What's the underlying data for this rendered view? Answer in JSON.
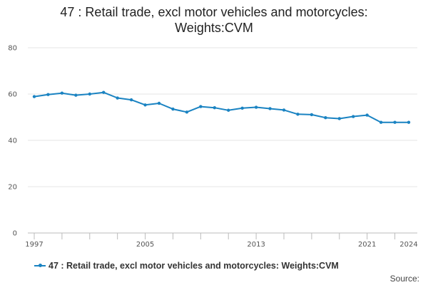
{
  "title_line1": "47 : Retail trade, excl motor vehicles and motorcycles:",
  "title_line2": "Weights:CVM",
  "source_label": "Source:",
  "colors": {
    "series": "#1a83c2",
    "grid": "#e6e6e6",
    "axis": "#bbbbbb"
  },
  "chart_data": {
    "type": "line",
    "title": "47 : Retail trade, excl motor vehicles and motorcycles: Weights:CVM",
    "xlabel": "",
    "ylabel": "",
    "ylim": [
      0,
      80
    ],
    "yticks": [
      0,
      20,
      40,
      60,
      80
    ],
    "xlim": [
      1997,
      2024
    ],
    "xtick_labels": [
      "1997",
      "2005",
      "2013",
      "2021",
      "2024"
    ],
    "grid": "horizontal",
    "legend": "bottom",
    "series": [
      {
        "name": "47 : Retail trade, excl motor vehicles and motorcycles: Weights:CVM",
        "x": [
          1997,
          1998,
          1999,
          2000,
          2001,
          2002,
          2003,
          2004,
          2005,
          2006,
          2007,
          2008,
          2009,
          2010,
          2011,
          2012,
          2013,
          2014,
          2015,
          2016,
          2017,
          2018,
          2019,
          2020,
          2021,
          2022,
          2023,
          2024
        ],
        "values": [
          58.9,
          59.8,
          60.4,
          59.5,
          60.0,
          60.7,
          58.3,
          57.5,
          55.3,
          56.0,
          53.5,
          52.2,
          54.6,
          54.1,
          53.0,
          53.9,
          54.3,
          53.7,
          53.1,
          51.3,
          51.1,
          49.8,
          49.4,
          50.3,
          50.9,
          47.8,
          47.8,
          47.8
        ]
      }
    ]
  }
}
